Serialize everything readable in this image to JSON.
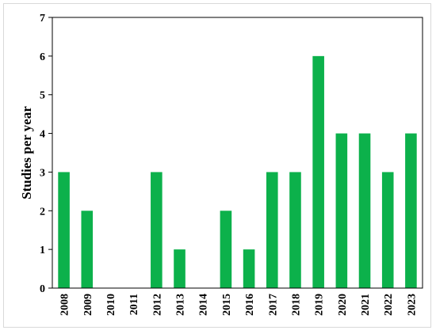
{
  "chart_data": {
    "type": "bar",
    "title": "",
    "xlabel": "",
    "ylabel": "Studies per year",
    "ylim": [
      0,
      7
    ],
    "yticks": [
      0,
      1,
      2,
      3,
      4,
      5,
      6,
      7
    ],
    "categories": [
      "2008",
      "2009",
      "2010",
      "2011",
      "2012",
      "2013",
      "2014",
      "2015",
      "2016",
      "2017",
      "2018",
      "2019",
      "2020",
      "2021",
      "2022",
      "2023"
    ],
    "values": [
      3,
      2,
      0,
      0,
      3,
      1,
      0,
      2,
      1,
      3,
      3,
      6,
      4,
      4,
      3,
      4
    ],
    "bar_color": "#0cb14b",
    "grid": false,
    "legend": "none"
  }
}
